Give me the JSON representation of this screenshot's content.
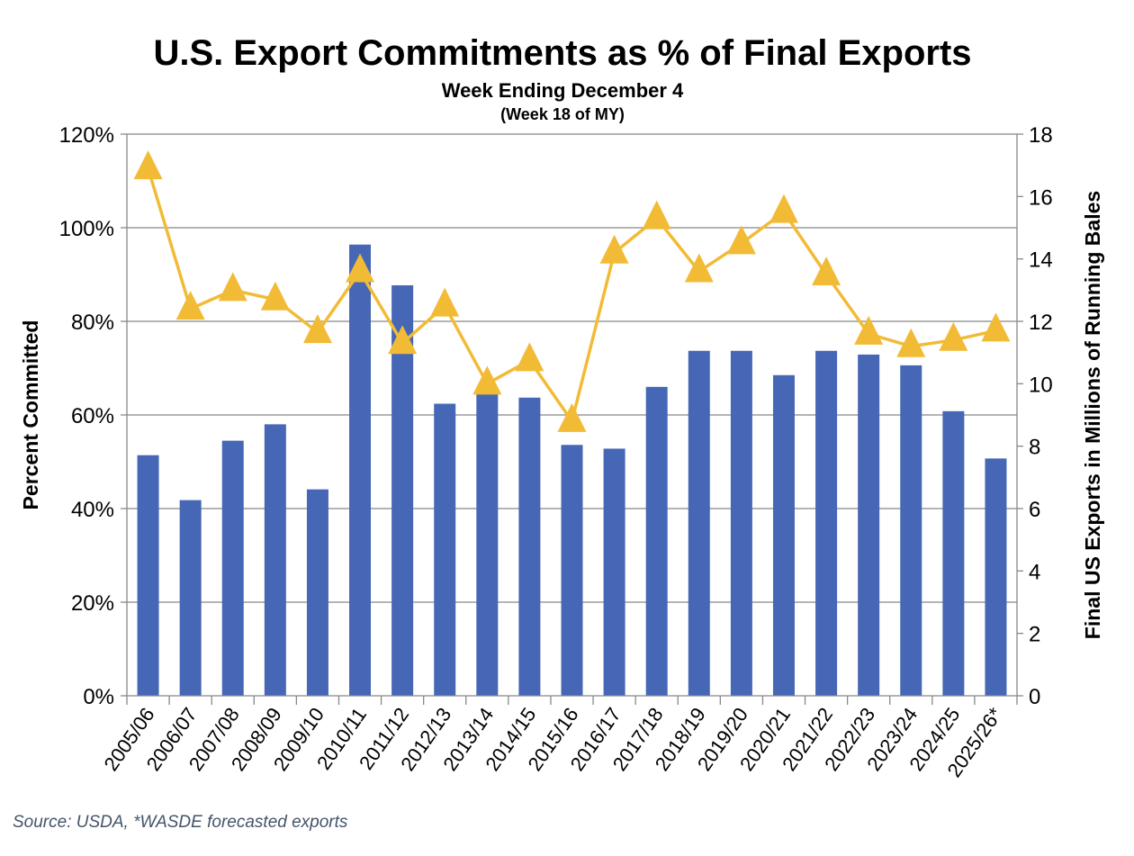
{
  "chart_data": {
    "type": "bar+line",
    "title": "U.S. Export Commitments as % of Final Exports",
    "subtitle": "Week Ending December 4",
    "subtitle2": "(Week 18 of MY)",
    "ylabel": "Percent Committed",
    "y2label": "Final US Exports in Millions of Running Bales",
    "ylim": [
      0,
      120
    ],
    "y2lim": [
      0,
      18
    ],
    "yticks": [
      "0%",
      "20%",
      "40%",
      "60%",
      "80%",
      "100%",
      "120%"
    ],
    "y2ticks": [
      "0",
      "2",
      "4",
      "6",
      "8",
      "10",
      "12",
      "14",
      "16",
      "18"
    ],
    "grid": true,
    "categories": [
      "2005/06",
      "2006/07",
      "2007/08",
      "2008/09",
      "2009/10",
      "2010/11",
      "2011/12",
      "2012/13",
      "2013/14",
      "2014/15",
      "2015/16",
      "2016/17",
      "2017/18",
      "2018/19",
      "2019/20",
      "2020/21",
      "2021/22",
      "2022/23",
      "2023/24",
      "2024/25",
      "2025/26*"
    ],
    "series": [
      {
        "type": "bar",
        "axis": "left",
        "color": "#4667b5",
        "values": [
          51.4,
          41.8,
          54.5,
          58.0,
          44.1,
          96.4,
          87.7,
          62.4,
          64.7,
          63.7,
          53.6,
          52.8,
          66.0,
          73.7,
          73.7,
          68.5,
          73.7,
          72.9,
          70.6,
          60.8,
          50.7
        ]
      },
      {
        "type": "line",
        "axis": "right",
        "marker": "triangle",
        "color": "#f2bb36",
        "values": [
          16.9,
          12.4,
          13.0,
          12.7,
          11.65,
          13.6,
          11.3,
          12.5,
          10.0,
          10.75,
          8.8,
          14.2,
          15.3,
          13.6,
          14.5,
          15.5,
          13.5,
          11.6,
          11.2,
          11.4,
          11.7
        ]
      }
    ],
    "source": "Source: USDA, *WASDE forecasted exports"
  }
}
